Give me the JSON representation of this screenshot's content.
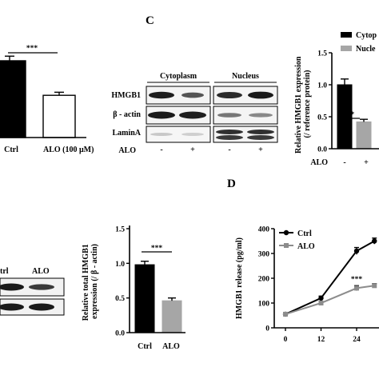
{
  "panel_labels": {
    "c": "C",
    "d": "D"
  },
  "blot_c": {
    "headers": [
      "Cytoplasm",
      "Nucleus"
    ],
    "rows": [
      "HMGB1",
      "β - actin",
      "LaminA"
    ],
    "treatment_label": "ALO",
    "lane_marks": [
      "-",
      "+",
      "-",
      "+"
    ]
  },
  "blot_b": {
    "lanes": [
      "trl",
      "ALO"
    ]
  },
  "chart_data": [
    {
      "id": "top-left-bars",
      "type": "bar",
      "categories": [
        "Ctrl",
        "ALO  (100 μM)"
      ],
      "values": [
        1.0,
        0.55
      ],
      "errors": [
        0.06,
        0.04
      ],
      "colors": [
        "#000000",
        "#ffffff"
      ],
      "significance": "***"
    },
    {
      "id": "panel-c-bars",
      "type": "bar",
      "ylabel": "Relative HMGB1 expression\n(/ reference protein)",
      "yticks": [
        0.0,
        0.5,
        1.0,
        1.5
      ],
      "ylim": [
        0,
        1.5
      ],
      "x_prefix": "ALO",
      "categories": [
        "-",
        "+"
      ],
      "values": [
        1.0,
        0.42
      ],
      "errors": [
        0.09,
        0.04
      ],
      "series_names": [
        "Cytop",
        "Nucle"
      ],
      "colors": [
        "#000000",
        "#a6a6a6"
      ],
      "significance": "***"
    },
    {
      "id": "bottom-middle-bars",
      "type": "bar",
      "ylabel": "Relative total HMGB1\nexpression (/ β - actin)",
      "yticks": [
        0.0,
        0.5,
        1.0,
        1.5
      ],
      "ylim": [
        0,
        1.5
      ],
      "categories": [
        "Ctrl",
        "ALO"
      ],
      "values": [
        0.98,
        0.46
      ],
      "errors": [
        0.05,
        0.04
      ],
      "colors": [
        "#000000",
        "#a6a6a6"
      ],
      "significance": "***"
    },
    {
      "id": "panel-d-line",
      "type": "line",
      "ylabel": "HMGB1 release (pg/ml)",
      "yticks": [
        0,
        100,
        200,
        300,
        400
      ],
      "ylim": [
        0,
        400
      ],
      "x": [
        0,
        12,
        24
      ],
      "xticks": [
        0,
        12,
        24
      ],
      "series": [
        {
          "name": "Ctrl",
          "x": [
            0,
            12,
            24,
            30
          ],
          "values": [
            55,
            120,
            310,
            350
          ],
          "errors": [
            4,
            8,
            14,
            12
          ],
          "color": "#000000",
          "marker": "circle"
        },
        {
          "name": "ALO",
          "x": [
            0,
            12,
            24,
            30
          ],
          "values": [
            55,
            100,
            160,
            170
          ],
          "errors": [
            4,
            6,
            10,
            8
          ],
          "color": "#8c8c8c",
          "marker": "square"
        }
      ],
      "annotations": [
        {
          "x": 24,
          "text": "***"
        }
      ]
    }
  ]
}
